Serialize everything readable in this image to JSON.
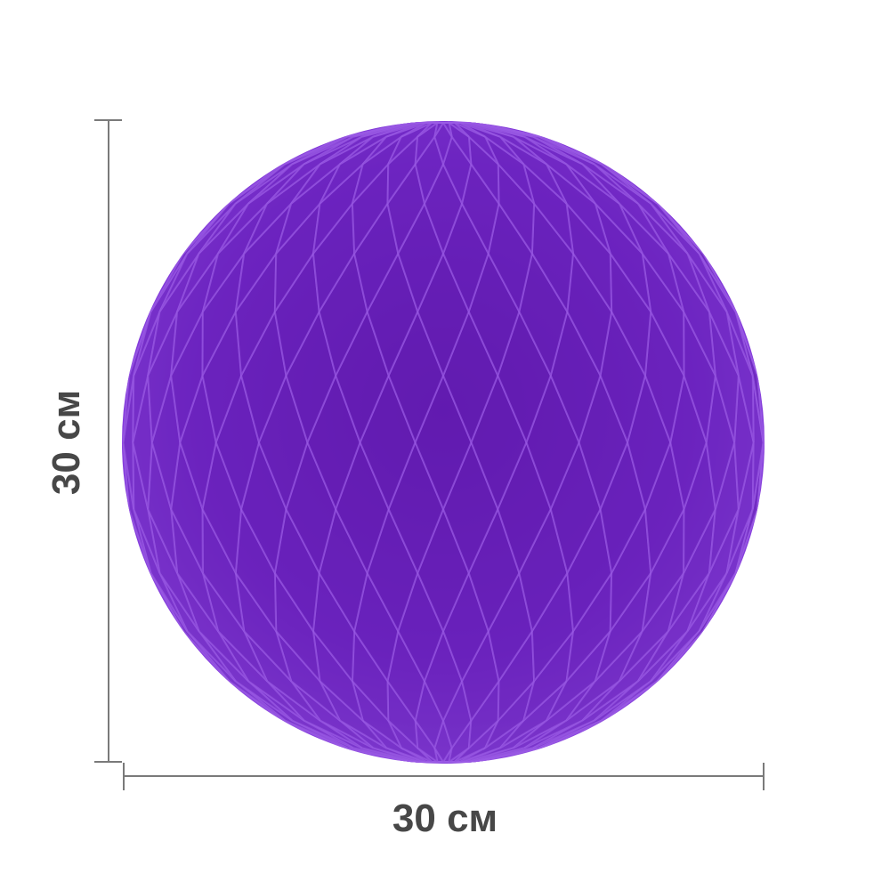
{
  "product": {
    "name_icon": "honeycomb-paper-ball",
    "color": "#7a2ed4",
    "shade_color": "#5b17a6",
    "highlight_color": "#9b5be6"
  },
  "dimensions": {
    "width_label": "30 см",
    "height_label": "30 см",
    "line_color": "#7a7a7a"
  }
}
